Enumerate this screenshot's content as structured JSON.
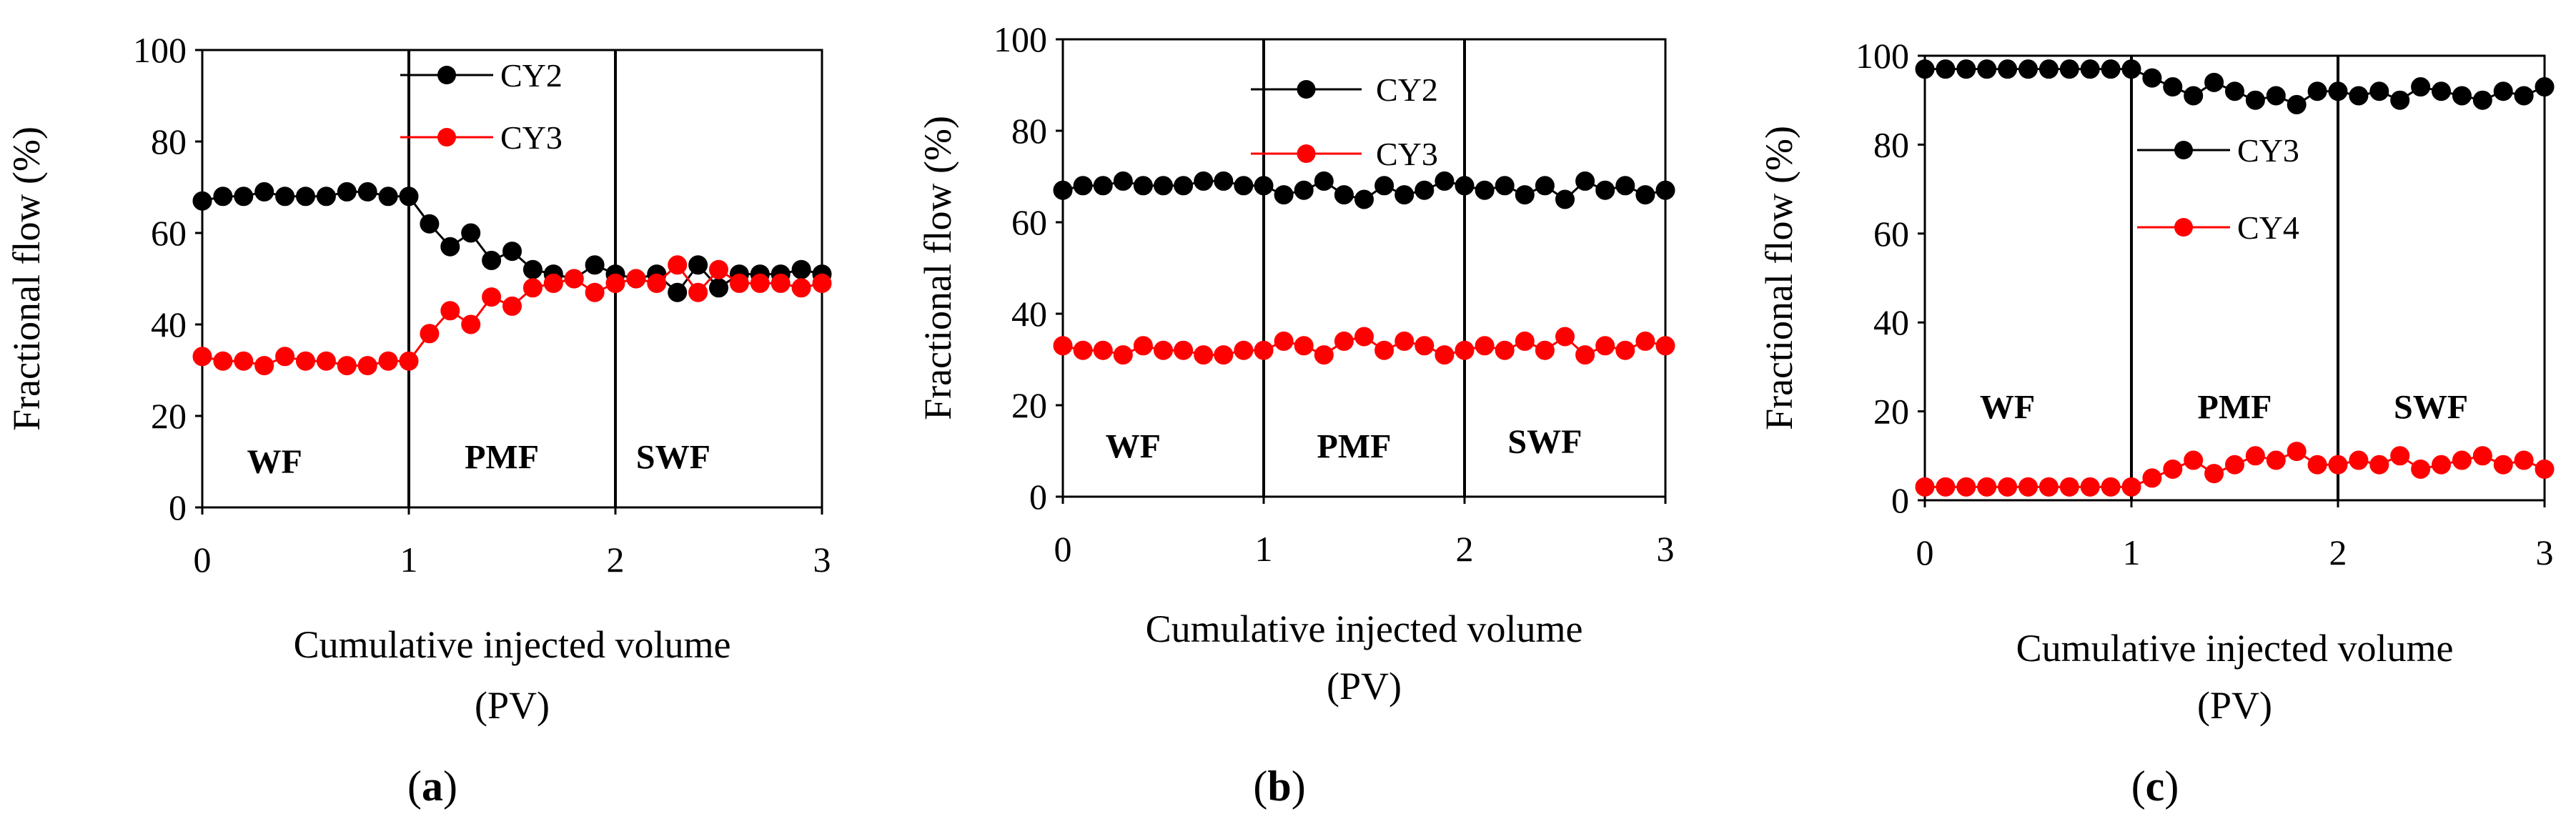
{
  "chart_data": [
    {
      "type": "line",
      "panel_label": "(a)",
      "panel_letter": "a",
      "xlabel_lines": [
        "Cumulative injected volume",
        "(PV)"
      ],
      "ylabel": "Fractional flow (%)",
      "xlim": [
        0,
        3
      ],
      "ylim": [
        0,
        100
      ],
      "xticks": [
        "0",
        "1",
        "2",
        "3"
      ],
      "yticks": [
        "0",
        "20",
        "40",
        "60",
        "80",
        "100"
      ],
      "stage_boundaries": [
        1,
        2
      ],
      "stages": [
        {
          "label": "WF",
          "x": 0.35,
          "y": 10
        },
        {
          "label": "PMF",
          "x": 1.45,
          "y": 11
        },
        {
          "label": "SWF",
          "x": 2.28,
          "y": 11
        }
      ],
      "legend_position": "top-center",
      "series": [
        {
          "name": "CY2",
          "color": "#000000",
          "x": [
            0,
            0.1,
            0.2,
            0.3,
            0.4,
            0.5,
            0.6,
            0.7,
            0.8,
            0.9,
            1.0,
            1.1,
            1.2,
            1.3,
            1.4,
            1.5,
            1.6,
            1.7,
            1.8,
            1.9,
            2.0,
            2.1,
            2.2,
            2.3,
            2.4,
            2.5,
            2.6,
            2.7,
            2.8,
            2.9,
            3.0
          ],
          "y": [
            67,
            68,
            68,
            69,
            68,
            68,
            68,
            69,
            69,
            68,
            68,
            62,
            57,
            60,
            54,
            56,
            52,
            51,
            50,
            53,
            51,
            50,
            51,
            47,
            53,
            48,
            51,
            51,
            51,
            52,
            51
          ]
        },
        {
          "name": "CY3",
          "color": "#ff0000",
          "x": [
            0,
            0.1,
            0.2,
            0.3,
            0.4,
            0.5,
            0.6,
            0.7,
            0.8,
            0.9,
            1.0,
            1.1,
            1.2,
            1.3,
            1.4,
            1.5,
            1.6,
            1.7,
            1.8,
            1.9,
            2.0,
            2.1,
            2.2,
            2.3,
            2.4,
            2.5,
            2.6,
            2.7,
            2.8,
            2.9,
            3.0
          ],
          "y": [
            33,
            32,
            32,
            31,
            33,
            32,
            32,
            31,
            31,
            32,
            32,
            38,
            43,
            40,
            46,
            44,
            48,
            49,
            50,
            47,
            49,
            50,
            49,
            53,
            47,
            52,
            49,
            49,
            49,
            48,
            49
          ]
        }
      ]
    },
    {
      "type": "line",
      "panel_label": "(b)",
      "panel_letter": "b",
      "xlabel_lines": [
        "Cumulative injected volume",
        "(PV)"
      ],
      "ylabel": "Fractional flow (%)",
      "xlim": [
        0,
        3
      ],
      "ylim": [
        0,
        100
      ],
      "xticks": [
        "0",
        "1",
        "2",
        "3"
      ],
      "yticks": [
        "0",
        "20",
        "40",
        "60",
        "80",
        "100"
      ],
      "stage_boundaries": [
        1,
        2
      ],
      "stages": [
        {
          "label": "WF",
          "x": 0.35,
          "y": 11
        },
        {
          "label": "PMF",
          "x": 1.45,
          "y": 11
        },
        {
          "label": "SWF",
          "x": 2.4,
          "y": 12
        }
      ],
      "legend_position": "top-center",
      "series": [
        {
          "name": "CY2",
          "color": "#000000",
          "x": [
            0,
            0.1,
            0.2,
            0.3,
            0.4,
            0.5,
            0.6,
            0.7,
            0.8,
            0.9,
            1.0,
            1.1,
            1.2,
            1.3,
            1.4,
            1.5,
            1.6,
            1.7,
            1.8,
            1.9,
            2.0,
            2.1,
            2.2,
            2.3,
            2.4,
            2.5,
            2.6,
            2.7,
            2.8,
            2.9,
            3.0
          ],
          "y": [
            67,
            68,
            68,
            69,
            68,
            68,
            68,
            69,
            69,
            68,
            68,
            66,
            67,
            69,
            66,
            65,
            68,
            66,
            67,
            69,
            68,
            67,
            68,
            66,
            68,
            65,
            69,
            67,
            68,
            66,
            67
          ]
        },
        {
          "name": "CY3",
          "color": "#ff0000",
          "x": [
            0,
            0.1,
            0.2,
            0.3,
            0.4,
            0.5,
            0.6,
            0.7,
            0.8,
            0.9,
            1.0,
            1.1,
            1.2,
            1.3,
            1.4,
            1.5,
            1.6,
            1.7,
            1.8,
            1.9,
            2.0,
            2.1,
            2.2,
            2.3,
            2.4,
            2.5,
            2.6,
            2.7,
            2.8,
            2.9,
            3.0
          ],
          "y": [
            33,
            32,
            32,
            31,
            33,
            32,
            32,
            31,
            31,
            32,
            32,
            34,
            33,
            31,
            34,
            35,
            32,
            34,
            33,
            31,
            32,
            33,
            32,
            34,
            32,
            35,
            31,
            33,
            32,
            34,
            33
          ]
        }
      ]
    },
    {
      "type": "line",
      "panel_label": "(c)",
      "panel_letter": "c",
      "xlabel_lines": [
        "Cumulative injected volume",
        "(PV)"
      ],
      "ylabel": "Fractional flow (%)",
      "xlim": [
        0,
        3
      ],
      "ylim": [
        0,
        100
      ],
      "xticks": [
        "0",
        "1",
        "2",
        "3"
      ],
      "yticks": [
        "0",
        "20",
        "40",
        "60",
        "80",
        "100"
      ],
      "stage_boundaries": [
        1,
        2
      ],
      "stages": [
        {
          "label": "WF",
          "x": 0.4,
          "y": 21
        },
        {
          "label": "PMF",
          "x": 1.5,
          "y": 21
        },
        {
          "label": "SWF",
          "x": 2.45,
          "y": 21
        }
      ],
      "legend_position": "center-left",
      "series": [
        {
          "name": "CY3",
          "color": "#000000",
          "x": [
            0,
            0.1,
            0.2,
            0.3,
            0.4,
            0.5,
            0.6,
            0.7,
            0.8,
            0.9,
            1.0,
            1.1,
            1.2,
            1.3,
            1.4,
            1.5,
            1.6,
            1.7,
            1.8,
            1.9,
            2.0,
            2.1,
            2.2,
            2.3,
            2.4,
            2.5,
            2.6,
            2.7,
            2.8,
            2.9,
            3.0
          ],
          "y": [
            97,
            97,
            97,
            97,
            97,
            97,
            97,
            97,
            97,
            97,
            97,
            95,
            93,
            91,
            94,
            92,
            90,
            91,
            89,
            92,
            92,
            91,
            92,
            90,
            93,
            92,
            91,
            90,
            92,
            91,
            93
          ]
        },
        {
          "name": "CY4",
          "color": "#ff0000",
          "x": [
            0,
            0.1,
            0.2,
            0.3,
            0.4,
            0.5,
            0.6,
            0.7,
            0.8,
            0.9,
            1.0,
            1.1,
            1.2,
            1.3,
            1.4,
            1.5,
            1.6,
            1.7,
            1.8,
            1.9,
            2.0,
            2.1,
            2.2,
            2.3,
            2.4,
            2.5,
            2.6,
            2.7,
            2.8,
            2.9,
            3.0
          ],
          "y": [
            3,
            3,
            3,
            3,
            3,
            3,
            3,
            3,
            3,
            3,
            3,
            5,
            7,
            9,
            6,
            8,
            10,
            9,
            11,
            8,
            8,
            9,
            8,
            10,
            7,
            8,
            9,
            10,
            8,
            9,
            7
          ]
        }
      ]
    }
  ]
}
